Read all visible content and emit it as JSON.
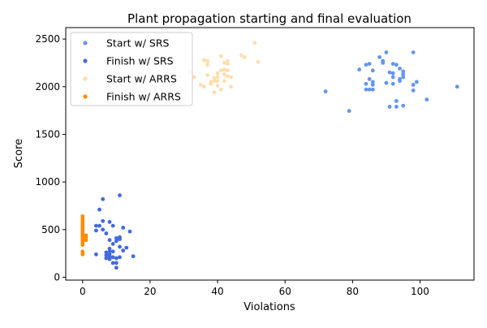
{
  "chart_data": {
    "type": "scatter",
    "title": "Plant propagation starting and final evaluation",
    "xlabel": "Violations",
    "ylabel": "Score",
    "xlim": [
      -5,
      116
    ],
    "ylim": [
      -30,
      2620
    ],
    "xticks": [
      0,
      20,
      40,
      60,
      80,
      100
    ],
    "yticks": [
      0,
      500,
      1000,
      1500,
      2000,
      2500
    ],
    "grid": false,
    "legend_position": "top-left",
    "series": [
      {
        "name": "Start w/ SRS",
        "color": "#6495ed",
        "points": [
          [
            72,
            1950
          ],
          [
            79,
            1745
          ],
          [
            82,
            2180
          ],
          [
            84,
            2230
          ],
          [
            84,
            2030
          ],
          [
            84,
            1970
          ],
          [
            85,
            2240
          ],
          [
            85,
            2080
          ],
          [
            85,
            1970
          ],
          [
            86,
            2050
          ],
          [
            86,
            2020
          ],
          [
            86,
            1970
          ],
          [
            86,
            2170
          ],
          [
            88,
            2310
          ],
          [
            89,
            2250
          ],
          [
            89,
            2270
          ],
          [
            90,
            2360
          ],
          [
            90,
            2040
          ],
          [
            91,
            2150
          ],
          [
            91,
            1790
          ],
          [
            92,
            2240
          ],
          [
            92,
            2140
          ],
          [
            92,
            2100
          ],
          [
            92,
            2030
          ],
          [
            93,
            2230
          ],
          [
            93,
            1850
          ],
          [
            93,
            1790
          ],
          [
            94,
            2190
          ],
          [
            94,
            2080
          ],
          [
            94,
            2060
          ],
          [
            95,
            2160
          ],
          [
            95,
            2130
          ],
          [
            95,
            2100
          ],
          [
            95,
            1800
          ],
          [
            98,
            2360
          ],
          [
            98,
            2020
          ],
          [
            98,
            1960
          ],
          [
            99,
            2050
          ],
          [
            102,
            1865
          ],
          [
            111,
            2000
          ]
        ]
      },
      {
        "name": "Finish w/ SRS",
        "color": "#4169e1",
        "points": [
          [
            4,
            540
          ],
          [
            4,
            490
          ],
          [
            4,
            240
          ],
          [
            5,
            710
          ],
          [
            5,
            540
          ],
          [
            6,
            820
          ],
          [
            6,
            590
          ],
          [
            6,
            500
          ],
          [
            7,
            460
          ],
          [
            7,
            260
          ],
          [
            7,
            230
          ],
          [
            7,
            200
          ],
          [
            8,
            580
          ],
          [
            8,
            390
          ],
          [
            8,
            300
          ],
          [
            8,
            270
          ],
          [
            8,
            240
          ],
          [
            8,
            220
          ],
          [
            8,
            190
          ],
          [
            9,
            540
          ],
          [
            9,
            350
          ],
          [
            9,
            270
          ],
          [
            9,
            210
          ],
          [
            9,
            150
          ],
          [
            10,
            410
          ],
          [
            10,
            380
          ],
          [
            10,
            200
          ],
          [
            10,
            150
          ],
          [
            10,
            100
          ],
          [
            11,
            860
          ],
          [
            11,
            420
          ],
          [
            11,
            400
          ],
          [
            11,
            320
          ],
          [
            11,
            210
          ],
          [
            12,
            520
          ],
          [
            12,
            280
          ],
          [
            13,
            310
          ],
          [
            14,
            480
          ],
          [
            15,
            220
          ]
        ]
      },
      {
        "name": "Start w/ ARRS",
        "color": "#ffdead",
        "points": [
          [
            32,
            2150
          ],
          [
            33,
            2100
          ],
          [
            35,
            2020
          ],
          [
            36,
            2000
          ],
          [
            36,
            2280
          ],
          [
            37,
            2270
          ],
          [
            37,
            2260
          ],
          [
            37,
            2230
          ],
          [
            37,
            2120
          ],
          [
            38,
            2050
          ],
          [
            38,
            2030
          ],
          [
            39,
            2090
          ],
          [
            39,
            2060
          ],
          [
            39,
            1940
          ],
          [
            40,
            2140
          ],
          [
            40,
            2100
          ],
          [
            40,
            2060
          ],
          [
            40,
            2010
          ],
          [
            41,
            2320
          ],
          [
            41,
            2170
          ],
          [
            41,
            1970
          ],
          [
            42,
            2250
          ],
          [
            42,
            2180
          ],
          [
            42,
            2130
          ],
          [
            42,
            2060
          ],
          [
            43,
            2270
          ],
          [
            43,
            2240
          ],
          [
            43,
            2170
          ],
          [
            43,
            2110
          ],
          [
            44,
            2100
          ],
          [
            44,
            2000
          ],
          [
            47,
            2330
          ],
          [
            48,
            2310
          ],
          [
            51,
            2460
          ],
          [
            52,
            2260
          ]
        ]
      },
      {
        "name": "Finish w/ ARRS",
        "color": "#ff8c00",
        "points": [
          [
            0,
            640
          ],
          [
            0,
            620
          ],
          [
            0,
            610
          ],
          [
            0,
            590
          ],
          [
            0,
            570
          ],
          [
            0,
            550
          ],
          [
            0,
            530
          ],
          [
            0,
            520
          ],
          [
            0,
            500
          ],
          [
            0,
            490
          ],
          [
            0,
            470
          ],
          [
            0,
            450
          ],
          [
            0,
            430
          ],
          [
            0,
            420
          ],
          [
            0,
            400
          ],
          [
            0,
            380
          ],
          [
            0,
            360
          ],
          [
            0,
            340
          ],
          [
            0,
            270
          ],
          [
            0,
            250
          ],
          [
            0,
            240
          ],
          [
            1,
            440
          ],
          [
            1,
            420
          ],
          [
            1,
            390
          ]
        ]
      }
    ]
  }
}
